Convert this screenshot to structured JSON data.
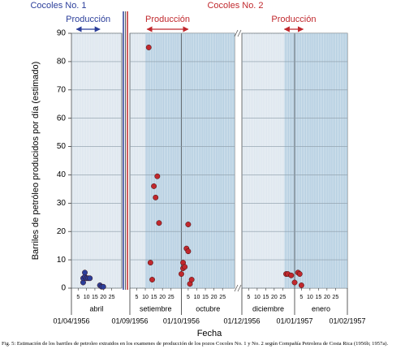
{
  "chart_data": {
    "type": "scatter",
    "y_label": "Barriles de petróleo producidos por día (estimado)",
    "x_label": "Fecha",
    "caption": "Fig. 5: Estimación de los barriles de petroleo extraidos en los examenes de producción de los pozos Cocoles No. 1 y No. 2 según Compañía Petrolera de Costa Rica (1956b; 1957a).",
    "ylim": [
      0,
      90
    ],
    "yticks": [
      0,
      10,
      20,
      30,
      40,
      50,
      60,
      70,
      80,
      90
    ],
    "grid": true,
    "panels": [
      {
        "xlim": [
          "1956-04-01",
          "1956-05-01"
        ],
        "months": [
          "abril"
        ]
      },
      {
        "xlim": [
          "1956-09-01",
          "1956-11-01"
        ],
        "months": [
          "setiembre",
          "octubre"
        ]
      },
      {
        "xlim": [
          "1956-12-01",
          "1957-02-01"
        ],
        "months": [
          "diciembre",
          "enero"
        ]
      }
    ],
    "shaded_spans": [
      [
        "1956-09-10",
        "1956-11-01"
      ],
      [
        "1956-12-26",
        "1957-02-01"
      ]
    ],
    "xticks": [
      {
        "value": "1956-04-01",
        "label": "01/04/1956"
      },
      {
        "value": "1956-09-01",
        "label": "01/09/1956"
      },
      {
        "value": "1956-10-01",
        "label": "01/10/1956"
      },
      {
        "value": "1956-12-01",
        "label": "01/12/1956"
      },
      {
        "value": "1957-01-01",
        "label": "01/01/1957"
      },
      {
        "value": "1957-02-01",
        "label": "01/02/1957"
      }
    ],
    "day_ticks": [
      {
        "value": "1956-04-05",
        "label": "5"
      },
      {
        "value": "1956-04-10",
        "label": "10"
      },
      {
        "value": "1956-04-15",
        "label": "15"
      },
      {
        "value": "1956-04-20",
        "label": "20"
      },
      {
        "value": "1956-04-25",
        "label": "25"
      },
      {
        "value": "1956-09-05",
        "label": "5"
      },
      {
        "value": "1956-09-10",
        "label": "10"
      },
      {
        "value": "1956-09-15",
        "label": "15"
      },
      {
        "value": "1956-09-20",
        "label": "20"
      },
      {
        "value": "1956-09-25",
        "label": "25"
      },
      {
        "value": "1956-10-05",
        "label": "5"
      },
      {
        "value": "1956-10-10",
        "label": "10"
      },
      {
        "value": "1956-10-15",
        "label": "15"
      },
      {
        "value": "1956-10-20",
        "label": "20"
      },
      {
        "value": "1956-10-25",
        "label": "25"
      },
      {
        "value": "1956-12-05",
        "label": "5"
      },
      {
        "value": "1956-12-10",
        "label": "10"
      },
      {
        "value": "1956-12-15",
        "label": "15"
      },
      {
        "value": "1956-12-20",
        "label": "20"
      },
      {
        "value": "1956-12-25",
        "label": "25"
      },
      {
        "value": "1957-01-05",
        "label": "5"
      },
      {
        "value": "1957-01-10",
        "label": "10"
      },
      {
        "value": "1957-01-15",
        "label": "15"
      },
      {
        "value": "1957-01-20",
        "label": "20"
      },
      {
        "value": "1957-01-25",
        "label": "25"
      }
    ],
    "series": [
      {
        "name": "Cocoles No. 1",
        "color": "#2b3e9a",
        "x": [
          "1956-04-08",
          "1956-04-08",
          "1956-04-09",
          "1956-04-09",
          "1956-04-10",
          "1956-04-11",
          "1956-04-12",
          "1956-04-18",
          "1956-04-19",
          "1956-04-20"
        ],
        "values": [
          2,
          3.5,
          4,
          5.5,
          3.5,
          3.5,
          3.5,
          1,
          0.5,
          0.5
        ]
      },
      {
        "name": "Cocoles No. 2",
        "color": "#c0282d",
        "x": [
          "1956-09-12",
          "1956-09-13",
          "1956-09-14",
          "1956-09-15",
          "1956-09-16",
          "1956-09-17",
          "1956-09-18",
          "1956-10-01",
          "1956-10-02",
          "1956-10-02",
          "1956-10-03",
          "1956-10-04",
          "1956-10-05",
          "1956-10-05",
          "1956-10-06",
          "1956-10-07",
          "1956-12-27",
          "1956-12-28",
          "1956-12-30",
          "1957-01-01",
          "1957-01-03",
          "1957-01-04",
          "1957-01-05"
        ],
        "values": [
          85,
          9,
          3,
          36,
          32,
          39.5,
          23,
          5,
          7,
          9,
          7.5,
          14,
          13,
          22.5,
          1.5,
          3,
          5,
          5,
          4.5,
          2,
          5.5,
          5,
          1
        ]
      }
    ],
    "annotations": [
      {
        "text": "Producción",
        "color": "#2b3e9a",
        "from": "1956-04-04",
        "to": "1956-04-18"
      },
      {
        "text": "Producción",
        "color": "#c0282d",
        "from": "1956-09-11",
        "to": "1956-10-05"
      },
      {
        "text": "Producción",
        "color": "#c0282d",
        "from": "1956-12-26",
        "to": "1957-01-06"
      }
    ]
  }
}
